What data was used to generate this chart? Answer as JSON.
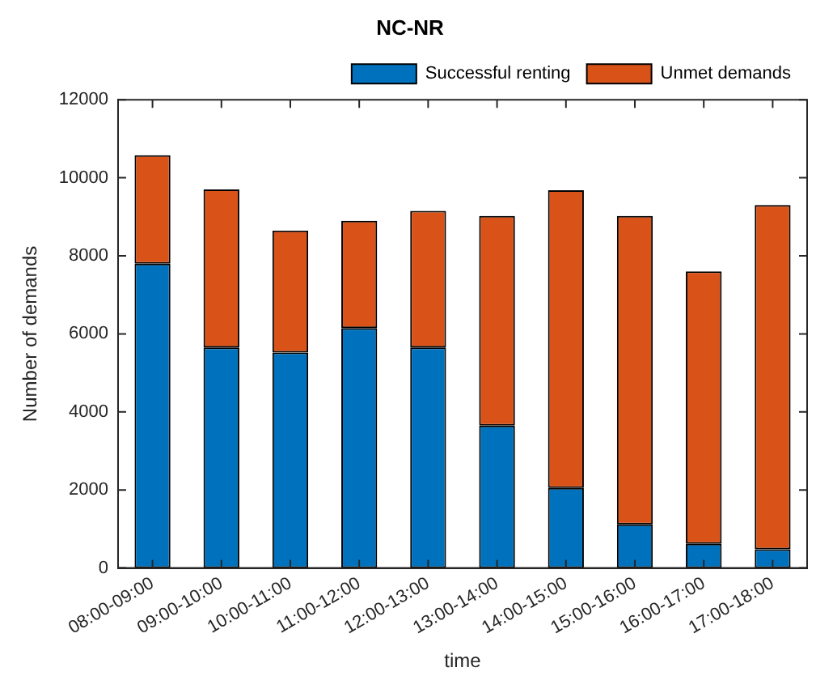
{
  "chart_data": {
    "type": "bar",
    "title": "NC-NR",
    "xlabel": "time",
    "ylabel": "Number of demands",
    "categories": [
      "08:00-09:00",
      "09:00-10:00",
      "10:00-11:00",
      "11:00-12:00",
      "12:00-13:00",
      "13:00-14:00",
      "14:00-15:00",
      "15:00-16:00",
      "16:00-17:00",
      "17:00-18:00"
    ],
    "series": [
      {
        "name": "Successful renting",
        "color": "#0072bd",
        "values": [
          7800,
          5650,
          5520,
          6150,
          5650,
          3650,
          2050,
          1120,
          620,
          480
        ]
      },
      {
        "name": "Unmet demands",
        "color": "#d95319",
        "values": [
          2780,
          4050,
          3130,
          2750,
          3500,
          5370,
          7630,
          7900,
          6980,
          8820
        ]
      }
    ],
    "stacked": true,
    "ylim": [
      0,
      12000
    ],
    "yticks": [
      0,
      2000,
      4000,
      6000,
      8000,
      10000,
      12000
    ],
    "grid": false,
    "legend": "top right"
  }
}
